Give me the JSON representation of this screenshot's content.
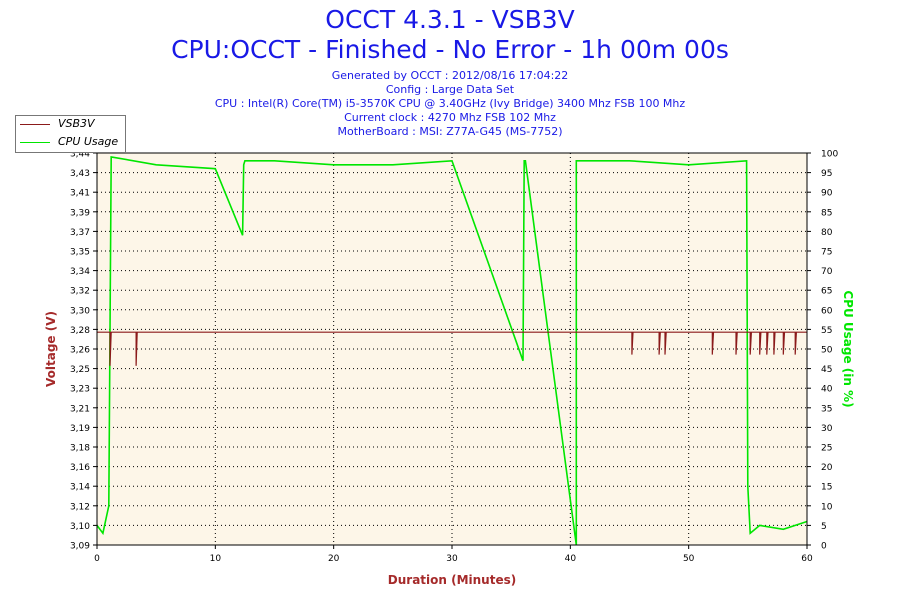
{
  "title": "OCCT 4.3.1 - VSB3V",
  "subtitle": "CPU:OCCT - Finished - No Error - 1h 00m 00s",
  "info_lines": [
    "Generated by OCCT : 2012/08/16 17:04:22",
    "Config : Large Data Set",
    "CPU : Intel(R) Core(TM) i5-3570K CPU @ 3.40GHz (Ivy Bridge) 3400 Mhz FSB 100 Mhz",
    "Current clock : 4270 Mhz FSB 102 Mhz",
    "MotherBoard : MSI: Z77A-G45 (MS-7752)"
  ],
  "colors": {
    "title": "#1919e6",
    "voltage": "#8b1a1a",
    "cpu": "#00e600",
    "plot_bg": "#fdf6e8",
    "axis_label": "#a52a2a"
  },
  "chart_data": {
    "type": "line",
    "xlabel": "Duration (Minutes)",
    "ylabel_left": "Voltage (V)",
    "ylabel_right": "CPU Usage (in %)",
    "xlim": [
      0,
      60
    ],
    "ylim_left": [
      3.09,
      3.44
    ],
    "ylim_right": [
      0,
      100
    ],
    "x_ticks": [
      "0",
      "10",
      "20",
      "30",
      "40",
      "50",
      "60"
    ],
    "y_left_ticks": [
      "3,09",
      "3,10",
      "3,12",
      "3,14",
      "3,16",
      "3,18",
      "3,19",
      "3,21",
      "3,23",
      "3,25",
      "3,26",
      "3,28",
      "3,30",
      "3,32",
      "3,34",
      "3,35",
      "3,37",
      "3,39",
      "3,41",
      "3,43",
      "3,44"
    ],
    "y_right_ticks": [
      "0",
      "5",
      "10",
      "15",
      "20",
      "25",
      "30",
      "35",
      "40",
      "45",
      "50",
      "55",
      "60",
      "65",
      "70",
      "75",
      "80",
      "85",
      "90",
      "95",
      "100"
    ],
    "grid": true,
    "legend_position": "top-left",
    "series": [
      {
        "name": "VSB3V",
        "axis": "left",
        "baseline": 3.28,
        "x": [
          0,
          1.1,
          1.1,
          1.2,
          3.3,
          3.3,
          3.4,
          45.2,
          45.2,
          45.3,
          47.5,
          47.5,
          47.6,
          48.0,
          48.0,
          48.1,
          52.0,
          52.0,
          52.1,
          54.0,
          54.0,
          54.1,
          55.2,
          55.2,
          55.3,
          56.0,
          56.0,
          56.1,
          56.6,
          56.6,
          56.7,
          57.2,
          57.2,
          57.3,
          58.0,
          58.0,
          58.1,
          59.0,
          59.0,
          59.1,
          60
        ],
        "y": [
          3.28,
          3.28,
          3.25,
          3.28,
          3.28,
          3.25,
          3.28,
          3.28,
          3.26,
          3.28,
          3.28,
          3.26,
          3.28,
          3.28,
          3.26,
          3.28,
          3.28,
          3.26,
          3.28,
          3.28,
          3.26,
          3.28,
          3.28,
          3.26,
          3.28,
          3.28,
          3.26,
          3.28,
          3.28,
          3.26,
          3.28,
          3.28,
          3.26,
          3.28,
          3.28,
          3.26,
          3.28,
          3.28,
          3.26,
          3.28,
          3.28
        ]
      },
      {
        "name": "CPU Usage",
        "axis": "right",
        "x": [
          0,
          0.5,
          1.0,
          1.2,
          5,
          10,
          12.3,
          12.4,
          12.5,
          15,
          20,
          25,
          30,
          36.0,
          36.1,
          36.2,
          40.5,
          40.5,
          40.6,
          45,
          50,
          54.9,
          55.0,
          55.2,
          56,
          58,
          60
        ],
        "y": [
          5,
          3,
          10,
          99,
          97,
          96,
          79,
          97,
          98,
          98,
          97,
          97,
          98,
          47,
          98,
          98,
          0,
          98,
          98,
          98,
          97,
          98,
          15,
          3,
          5,
          4,
          6
        ]
      }
    ]
  }
}
